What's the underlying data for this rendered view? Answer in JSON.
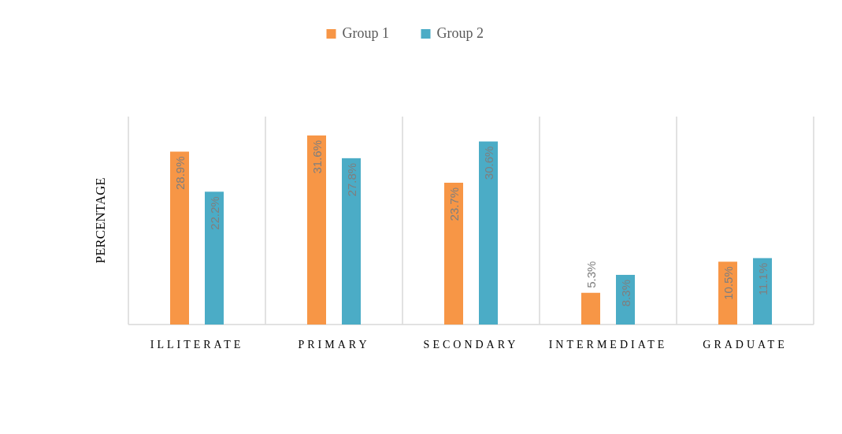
{
  "chart_data": {
    "type": "bar",
    "ylabel": "PERCENTAGE",
    "categories": [
      "ILLITERATE",
      "PRIMARY",
      "SECONDARY",
      "INTERMEDIATE",
      "GRADUATE"
    ],
    "series": [
      {
        "name": "Group 1",
        "color": "#f79646",
        "values": [
          28.9,
          31.6,
          23.7,
          5.3,
          10.5
        ],
        "value_labels": [
          "28.9%",
          "31.6%",
          "23.7%",
          "5.3%",
          "10.5%"
        ]
      },
      {
        "name": "Group 2",
        "color": "#4bacc6",
        "values": [
          22.2,
          27.8,
          30.6,
          8.3,
          11.1
        ],
        "value_labels": [
          "22.2%",
          "27.8%",
          "30.6%",
          "8.3%",
          "11.1%"
        ]
      }
    ],
    "grid": "x",
    "legend": "top"
  }
}
